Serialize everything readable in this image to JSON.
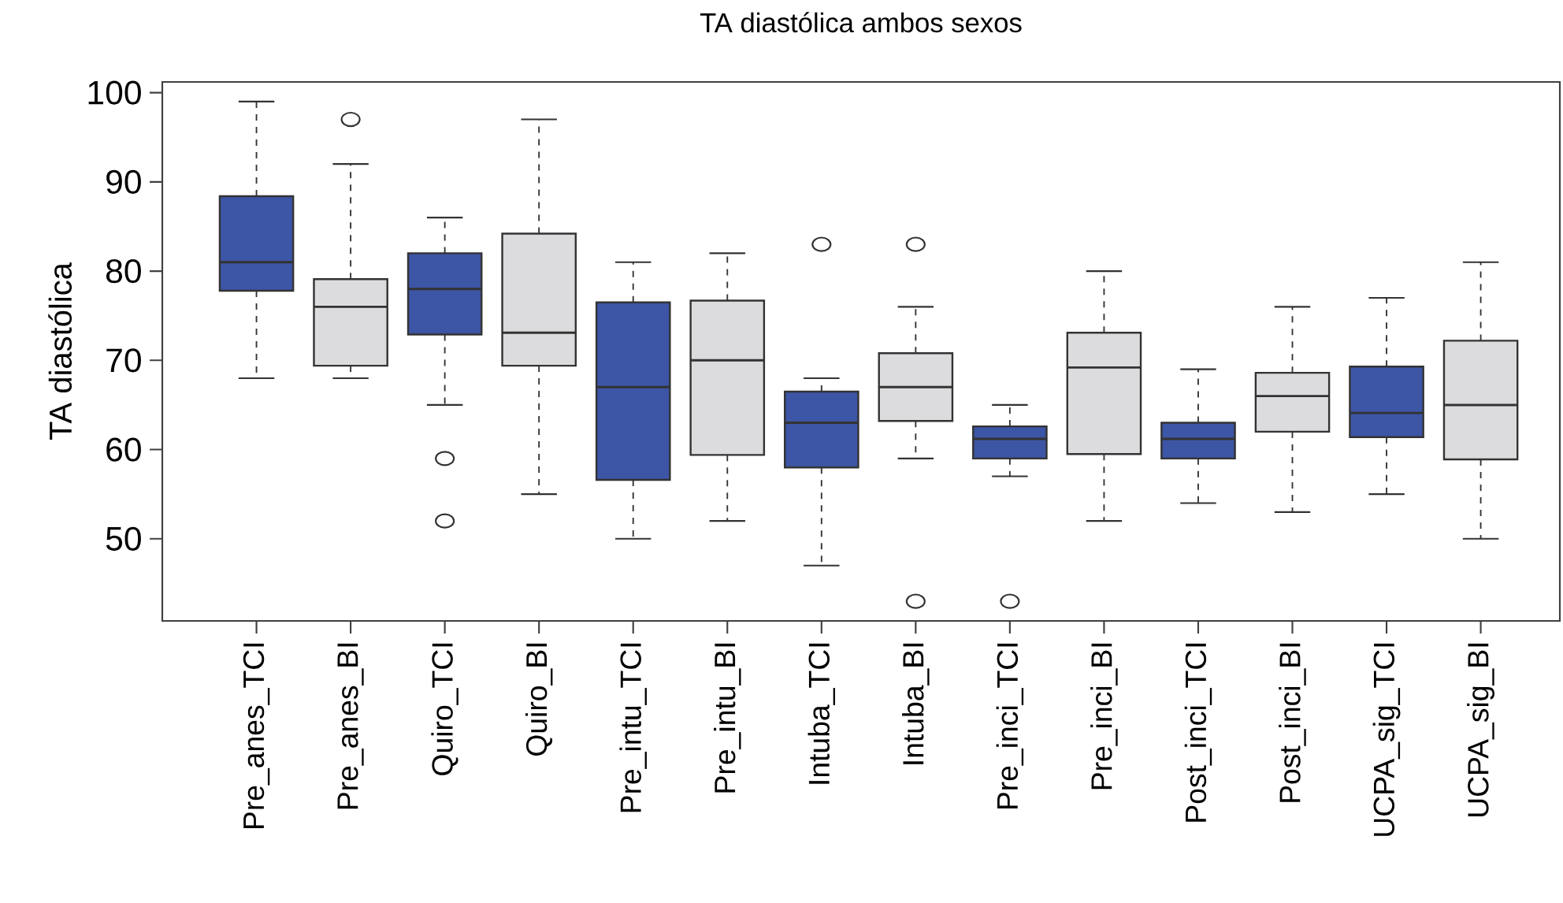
{
  "chart_data": {
    "type": "box",
    "title": "TA diastólica ambos sexos",
    "ylabel": "TA diastólica",
    "categories": [
      "Pre_anes_TCI",
      "Pre_anes_BI",
      "Quiro_TCI",
      "Quiro_BI",
      "Pre_intu_TCI",
      "Pre_intu_BI",
      "Intuba_TCI",
      "Intuba_BI",
      "Pre_inci_TCI",
      "Pre_inci_BI",
      "Post_inci_TCI",
      "Post_inci_BI",
      "UCPA_sig_TCI",
      "UCPA_sig_BI"
    ],
    "colors": [
      "#3d55a5",
      "#dcdcde",
      "#3d55a5",
      "#dcdcde",
      "#3d55a5",
      "#dcdcde",
      "#3d55a5",
      "#dcdcde",
      "#3d55a5",
      "#dcdcde",
      "#3d55a5",
      "#dcdcde",
      "#3d55a5",
      "#dcdcde"
    ],
    "boxes": [
      {
        "low": 68,
        "q1": 77.8,
        "median": 81,
        "q3": 88.4,
        "high": 99
      },
      {
        "low": 68,
        "q1": 69.4,
        "median": 76,
        "q3": 79.1,
        "high": 92,
        "outliers": [
          97
        ]
      },
      {
        "low": 65,
        "q1": 72.9,
        "median": 78,
        "q3": 82,
        "high": 86,
        "outliers": [
          59,
          52
        ]
      },
      {
        "low": 55,
        "q1": 69.4,
        "median": 73.1,
        "q3": 84.2,
        "high": 97
      },
      {
        "low": 50,
        "q1": 56.6,
        "median": 67,
        "q3": 76.5,
        "high": 81
      },
      {
        "low": 52,
        "q1": 59.4,
        "median": 70,
        "q3": 76.7,
        "high": 82
      },
      {
        "low": 47,
        "q1": 58,
        "median": 63,
        "q3": 66.5,
        "high": 68,
        "outliers": [
          83
        ]
      },
      {
        "low": 59,
        "q1": 63.2,
        "median": 67,
        "q3": 70.8,
        "high": 76,
        "outliers": [
          83,
          43
        ]
      },
      {
        "low": 57,
        "q1": 59,
        "median": 61.2,
        "q3": 62.6,
        "high": 65,
        "outliers": [
          43
        ]
      },
      {
        "low": 52,
        "q1": 59.5,
        "median": 69.2,
        "q3": 73.1,
        "high": 80
      },
      {
        "low": 54,
        "q1": 59,
        "median": 61.2,
        "q3": 63,
        "high": 69
      },
      {
        "low": 53,
        "q1": 62,
        "median": 66,
        "q3": 68.6,
        "high": 76
      },
      {
        "low": 55,
        "q1": 61.4,
        "median": 64.1,
        "q3": 69.3,
        "high": 77
      },
      {
        "low": 50,
        "q1": 58.9,
        "median": 65,
        "q3": 72.2,
        "high": 81
      }
    ],
    "ylim": [
      40.8,
      101.2
    ],
    "yticks": [
      50,
      60,
      70,
      80,
      90,
      100
    ],
    "grid": false
  }
}
